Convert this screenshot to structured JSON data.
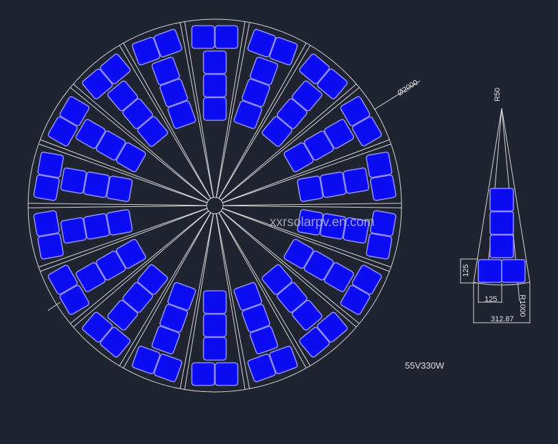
{
  "diagram": {
    "sector_count": 18,
    "panels_per_sector": 5,
    "panel_color": "#0c0cf2",
    "panel_outline_color": "#8c8cff",
    "line_color": "#d8d8d8",
    "background_color": "#1f2430",
    "diameter_label": "Ø2000",
    "watermark": "xxrsolarpv.en.com",
    "module_spec": "55V330W",
    "detail": {
      "apex_label": "R50",
      "height_label": "125",
      "width_label": "125",
      "radius_label": "R1000",
      "base_width_label": "312.87"
    }
  }
}
